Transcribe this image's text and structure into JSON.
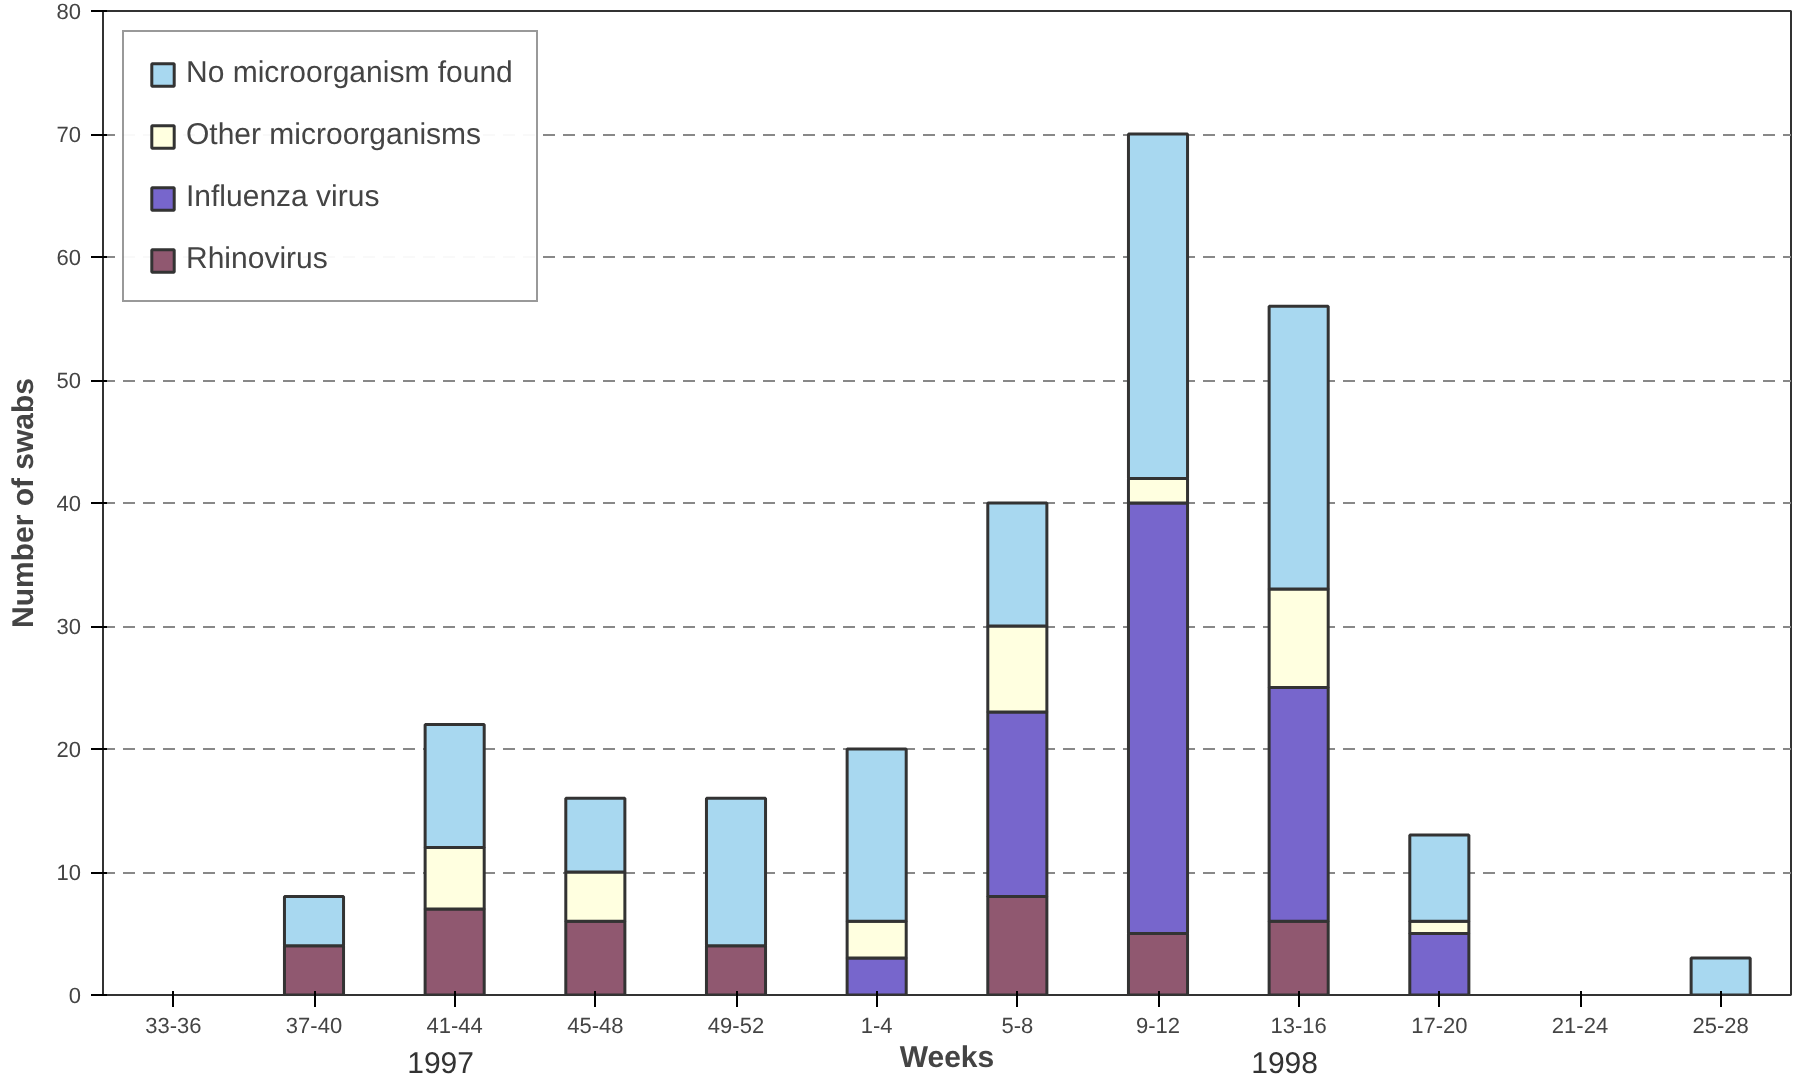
{
  "chart_data": {
    "type": "bar",
    "stacked": true,
    "ylabel": "Number of swabs",
    "xlabel": "Weeks",
    "categories": [
      "33-36",
      "37-40",
      "41-44",
      "45-48",
      "49-52",
      "1-4",
      "5-8",
      "9-12",
      "13-16",
      "17-20",
      "21-24",
      "25-28"
    ],
    "series": [
      {
        "name": "Rhinovirus",
        "color": "#905870",
        "values": [
          0,
          4,
          7,
          6,
          4,
          0,
          8,
          5,
          6,
          0,
          0,
          0
        ]
      },
      {
        "name": "Influenza virus",
        "color": "#7766cc",
        "values": [
          0,
          0,
          0,
          0,
          0,
          3,
          15,
          35,
          19,
          5,
          0,
          0
        ]
      },
      {
        "name": "Other microorganisms",
        "color": "#ffffe0",
        "values": [
          0,
          0,
          5,
          4,
          0,
          3,
          7,
          2,
          8,
          1,
          0,
          0
        ]
      },
      {
        "name": "No microorganism found",
        "color": "#a8d8f0",
        "values": [
          0,
          4,
          10,
          6,
          12,
          14,
          10,
          28,
          23,
          7,
          0,
          3
        ]
      }
    ],
    "ylim": [
      0,
      80
    ],
    "yticks": [
      0,
      10,
      20,
      30,
      40,
      50,
      60,
      70,
      80
    ],
    "grid": "y",
    "legend": "top left",
    "annotations": [
      "1997",
      "1998"
    ]
  }
}
